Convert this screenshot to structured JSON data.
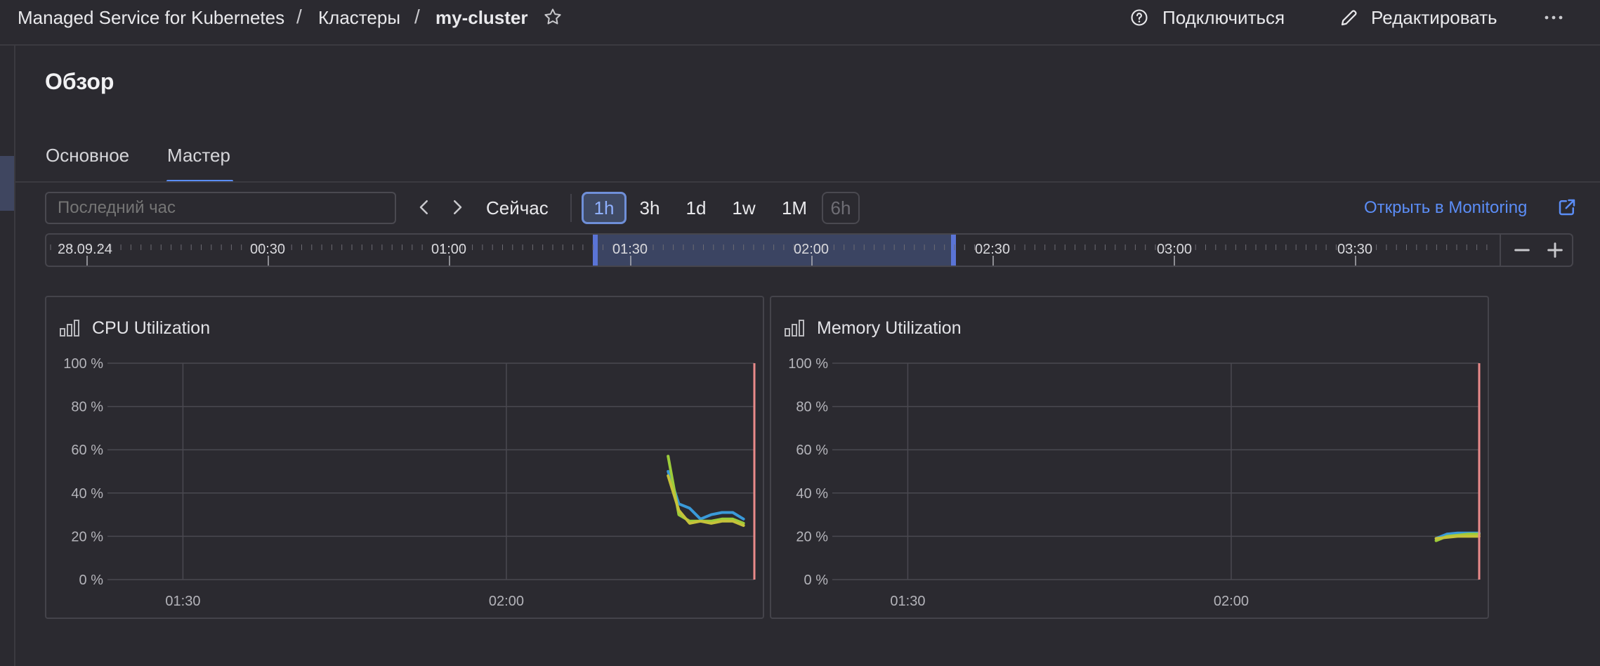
{
  "header": {
    "breadcrumbs": [
      "Managed Service for Kubernetes",
      "Кластеры",
      "my-cluster"
    ],
    "separator": "/",
    "connect_label": "Подключиться",
    "edit_label": "Редактировать",
    "more_icon": "more-icon"
  },
  "page": {
    "title": "Обзор"
  },
  "tabs": [
    {
      "label": "Основное",
      "active": false
    },
    {
      "label": "Мастер",
      "active": true
    }
  ],
  "toolbar": {
    "range_placeholder": "Последний час",
    "now_label": "Сейчас",
    "zoom_options": [
      {
        "label": "1h",
        "state": "active"
      },
      {
        "label": "3h",
        "state": "normal"
      },
      {
        "label": "1d",
        "state": "normal"
      },
      {
        "label": "1w",
        "state": "normal"
      },
      {
        "label": "1M",
        "state": "normal"
      },
      {
        "label": "6h",
        "state": "disabled"
      }
    ],
    "monitoring_link": "Открыть в Monitoring"
  },
  "timeline": {
    "labels": [
      "28.09.24",
      "00:30",
      "01:00",
      "01:30",
      "02:00",
      "02:30",
      "03:00",
      "03:30"
    ],
    "selection": {
      "start": "01:15",
      "end": "02:15"
    }
  },
  "colors": {
    "accent": "#5b8df6",
    "series_blue": "#3a9ad9",
    "series_green": "#9ccc3a",
    "series_yellow": "#c5c23a",
    "now_marker": "#e98a8a"
  },
  "chart_data": [
    {
      "type": "line",
      "title": "CPU Utilization",
      "xlabel": "",
      "ylabel": "",
      "x_ticks": [
        "01:30",
        "02:00"
      ],
      "y_ticks": [
        "0 %",
        "20 %",
        "40 %",
        "60 %",
        "80 %",
        "100 %"
      ],
      "ylim": [
        0,
        100
      ],
      "xlim": [
        "01:23",
        "02:23"
      ],
      "now_marker": "02:23",
      "grid": true,
      "series": [
        {
          "color": "#3a9ad9",
          "x": [
            "02:15",
            "02:16",
            "02:17",
            "02:18",
            "02:19",
            "02:20",
            "02:21",
            "02:22"
          ],
          "values": [
            50,
            35,
            33,
            28,
            30,
            31,
            31,
            28
          ]
        },
        {
          "color": "#9ccc3a",
          "x": [
            "02:15",
            "02:16",
            "02:17",
            "02:18",
            "02:19",
            "02:20",
            "02:21",
            "02:22"
          ],
          "values": [
            57,
            30,
            27,
            27,
            27,
            28,
            28,
            26
          ]
        },
        {
          "color": "#c5c23a",
          "x": [
            "02:15",
            "02:16",
            "02:17",
            "02:18",
            "02:19",
            "02:20",
            "02:21",
            "02:22"
          ],
          "values": [
            48,
            32,
            26,
            27,
            26,
            27,
            27,
            25
          ]
        }
      ]
    },
    {
      "type": "line",
      "title": "Memory Utilization",
      "xlabel": "",
      "ylabel": "",
      "x_ticks": [
        "01:30",
        "02:00"
      ],
      "y_ticks": [
        "0 %",
        "20 %",
        "40 %",
        "60 %",
        "80 %",
        "100 %"
      ],
      "ylim": [
        0,
        100
      ],
      "xlim": [
        "01:23",
        "02:23"
      ],
      "now_marker": "02:23",
      "grid": true,
      "series": [
        {
          "color": "#3a9ad9",
          "x": [
            "02:19",
            "02:20",
            "02:21",
            "02:22",
            "02:23"
          ],
          "values": [
            19,
            21,
            21.5,
            21.5,
            21.5
          ]
        },
        {
          "color": "#9ccc3a",
          "x": [
            "02:19",
            "02:20",
            "02:21",
            "02:22",
            "02:23"
          ],
          "values": [
            18,
            20,
            20.5,
            21,
            21
          ]
        },
        {
          "color": "#c5c23a",
          "x": [
            "02:19",
            "02:20",
            "02:21",
            "02:22",
            "02:23"
          ],
          "values": [
            19,
            19.5,
            20,
            20,
            20
          ]
        }
      ]
    }
  ]
}
